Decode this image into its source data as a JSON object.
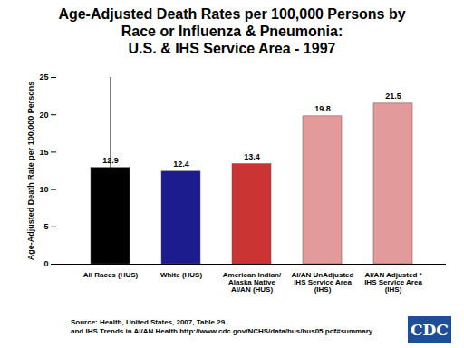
{
  "chart_data": {
    "type": "bar",
    "title": [
      "Age-Adjusted Death Rates per 100,000 Persons by",
      "Race or Influenza & Pneumonia:",
      "U.S. & IHS Service Area - 1997"
    ],
    "y_label": "Age-Adjusted Death Rate per 100,000 Persons",
    "categories": [
      "All Races (HUS)",
      "White (HUS)",
      "American Indian/ Alaska Native AI/AN (HUS)",
      "AI/AN UnAdjusted IHS Service Area (IHS)",
      "AI/AN Adjusted * IHS Service Area (IHS)"
    ],
    "values": [
      12.9,
      12.4,
      13.4,
      19.8,
      21.5
    ],
    "colors": [
      "#000000",
      "#1c1c8f",
      "#cc3333",
      "#e39a9a",
      "#e39a9a"
    ],
    "ylim": [
      0,
      25
    ],
    "yticks": [
      0,
      5,
      10,
      15,
      20,
      25
    ],
    "data_labels": true,
    "grid": false,
    "source": [
      "Source: Health, United States, 2007, Table 29.",
      "and IHS Trends in AI/AN Health http://www.cdc.gov/NCHS/data/hus/hus05.pdf#summary"
    ],
    "logo": "CDC"
  }
}
